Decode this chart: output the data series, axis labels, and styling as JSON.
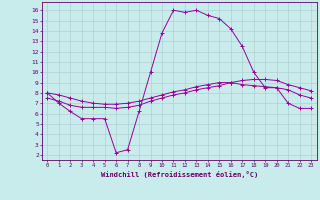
{
  "xlabel": "Windchill (Refroidissement éolien,°C)",
  "bg_color": "#c8ecec",
  "grid_color": "#b0d0d0",
  "line_color": "#990099",
  "x_ticks": [
    0,
    1,
    2,
    3,
    4,
    5,
    6,
    7,
    8,
    9,
    10,
    11,
    12,
    13,
    14,
    15,
    16,
    17,
    18,
    19,
    20,
    21,
    22,
    23
  ],
  "y_ticks": [
    2,
    3,
    4,
    5,
    6,
    7,
    8,
    9,
    10,
    11,
    12,
    13,
    14,
    15,
    16
  ],
  "ylim": [
    1.5,
    16.8
  ],
  "xlim": [
    -0.5,
    23.5
  ],
  "line1_x": [
    0,
    1,
    2,
    3,
    4,
    5,
    6,
    7,
    8,
    9,
    10,
    11,
    12,
    13,
    14,
    15,
    16,
    17,
    18,
    19,
    20,
    21,
    22,
    23
  ],
  "line1_y": [
    8.0,
    7.0,
    6.2,
    5.5,
    5.5,
    5.5,
    2.2,
    2.5,
    6.2,
    10.0,
    13.8,
    16.0,
    15.8,
    16.0,
    15.5,
    15.2,
    14.2,
    12.5,
    10.0,
    8.5,
    8.5,
    7.0,
    6.5,
    6.5
  ],
  "line2_x": [
    0,
    1,
    2,
    3,
    4,
    5,
    6,
    7,
    8,
    9,
    10,
    11,
    12,
    13,
    14,
    15,
    16,
    17,
    18,
    19,
    20,
    21,
    22,
    23
  ],
  "line2_y": [
    7.5,
    7.2,
    6.8,
    6.6,
    6.6,
    6.6,
    6.5,
    6.6,
    6.8,
    7.2,
    7.5,
    7.8,
    8.0,
    8.3,
    8.5,
    8.7,
    9.0,
    9.2,
    9.3,
    9.3,
    9.2,
    8.8,
    8.5,
    8.2
  ],
  "line3_x": [
    0,
    1,
    2,
    3,
    4,
    5,
    6,
    7,
    8,
    9,
    10,
    11,
    12,
    13,
    14,
    15,
    16,
    17,
    18,
    19,
    20,
    21,
    22,
    23
  ],
  "line3_y": [
    8.0,
    7.8,
    7.5,
    7.2,
    7.0,
    6.9,
    6.9,
    7.0,
    7.2,
    7.5,
    7.8,
    8.1,
    8.3,
    8.6,
    8.8,
    9.0,
    9.0,
    8.8,
    8.7,
    8.6,
    8.5,
    8.3,
    7.8,
    7.5
  ]
}
